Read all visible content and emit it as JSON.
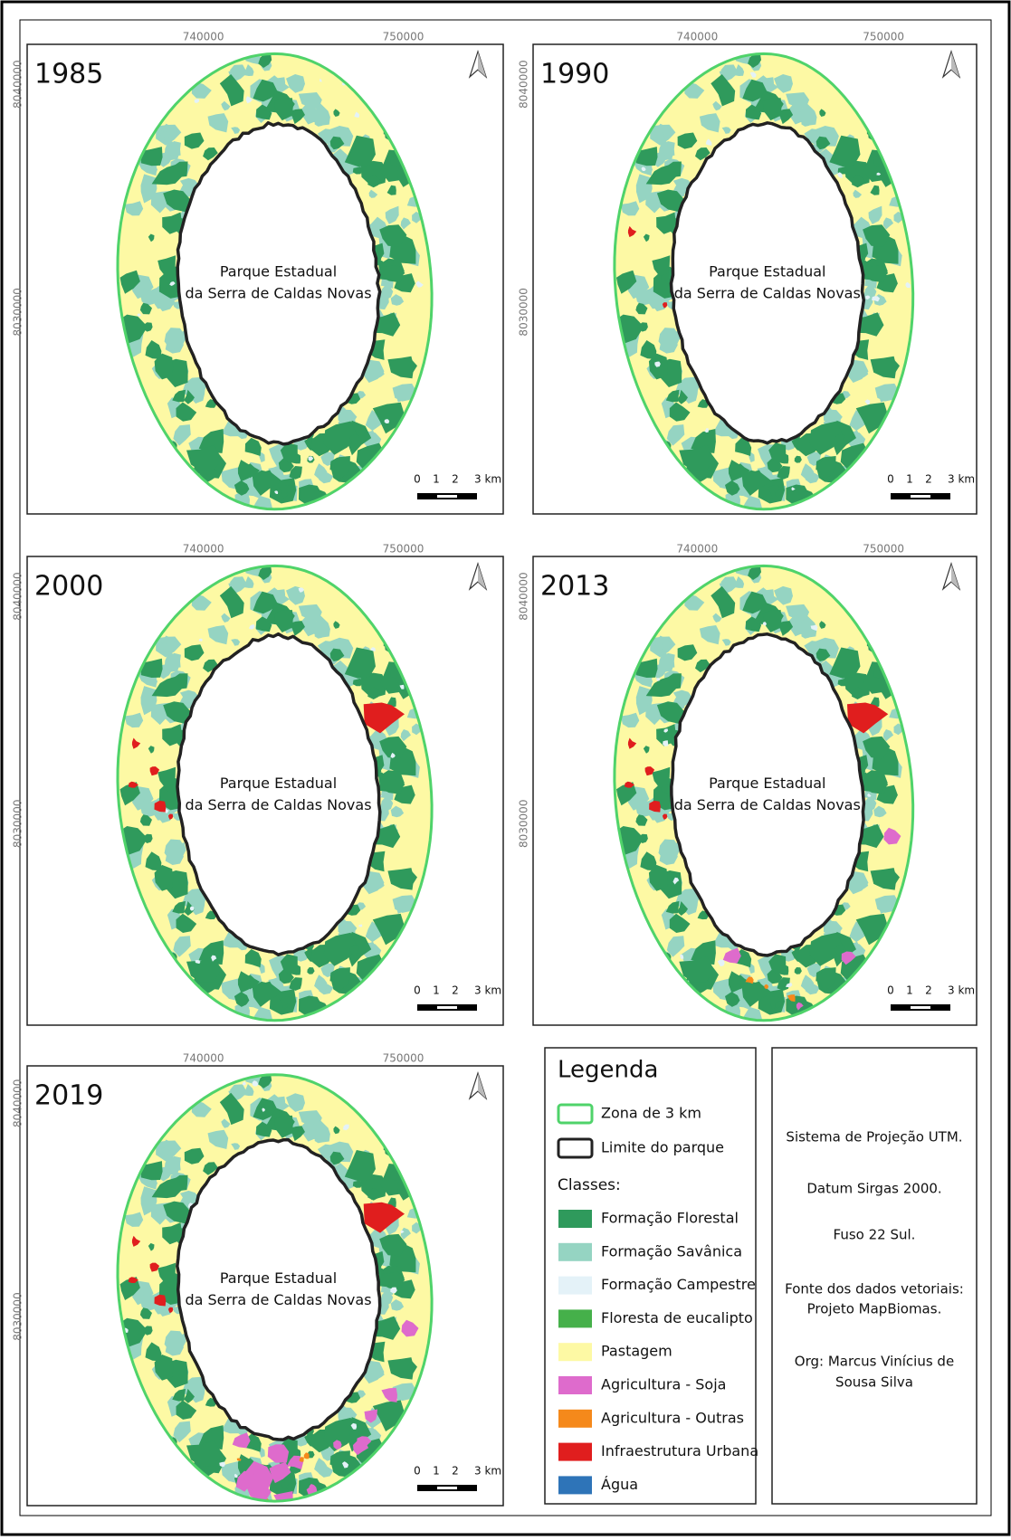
{
  "maps": [
    {
      "year": "1985"
    },
    {
      "year": "1990"
    },
    {
      "year": "2000"
    },
    {
      "year": "2013"
    },
    {
      "year": "2019"
    }
  ],
  "map_frame": {
    "xticks": [
      "740000",
      "750000"
    ],
    "yticks": [
      "8040000",
      "8030000"
    ],
    "park_label": [
      "Parque Estadual",
      "da Serra de Caldas Novas"
    ],
    "scale_labels": [
      "0",
      "1",
      "2",
      "3 km"
    ]
  },
  "legend": {
    "title": "Legenda",
    "boundaries": [
      {
        "label": "Zona de 3 km",
        "color": "#4fd36a"
      },
      {
        "label": "Limite do parque",
        "color": "#222222"
      }
    ],
    "classes_title": "Classes:",
    "classes": [
      {
        "label": "Formação Florestal",
        "color": "#2f9a5c"
      },
      {
        "label": "Formação Savânica",
        "color": "#95d4c2"
      },
      {
        "label": "Formação Campestre",
        "color": "#e4f2f8"
      },
      {
        "label": "Floresta de eucalipto",
        "color": "#45b04a"
      },
      {
        "label": "Pastagem",
        "color": "#fdf9a4"
      },
      {
        "label": "Agricultura - Soja",
        "color": "#de6bcc"
      },
      {
        "label": "Agricultura - Outras",
        "color": "#f5891b"
      },
      {
        "label": "Infraestrutura Urbana",
        "color": "#e01e1e"
      },
      {
        "label": "Água",
        "color": "#2e74b8"
      }
    ]
  },
  "info": {
    "lines": [
      "Sistema de Projeção UTM.",
      "Datum Sirgas 2000.",
      "Fuso 22 Sul.",
      "Fonte dos dados vetoriais:",
      "Projeto MapBiomas.",
      "Org: Marcus Vinícius de",
      "Sousa Silva"
    ]
  }
}
